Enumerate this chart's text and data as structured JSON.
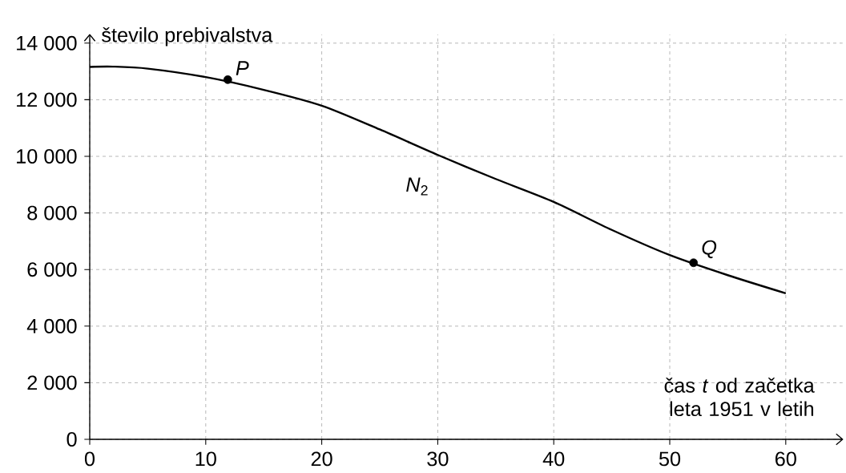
{
  "chart_data": {
    "type": "line",
    "ylabel": "število prebivalstva",
    "xlabel": "čas *t* od začetka leta 1951 v letih",
    "xlim": [
      0,
      64.9
    ],
    "ylim": [
      0,
      14300
    ],
    "xticks": [
      0,
      10,
      20,
      30,
      40,
      50,
      60
    ],
    "yticks": [
      {
        "value": 0,
        "label": "0"
      },
      {
        "value": 2000,
        "label": "2 000"
      },
      {
        "value": 4000,
        "label": "4 000"
      },
      {
        "value": 6000,
        "label": "6 000"
      },
      {
        "value": 8000,
        "label": "8 000"
      },
      {
        "value": 10000,
        "label": "10 000"
      },
      {
        "value": 12000,
        "label": "12 000"
      },
      {
        "value": 14000,
        "label": "14 000"
      }
    ],
    "grid": true,
    "series": [
      {
        "color": "#000000",
        "x": [
          0,
          2,
          5,
          10,
          15,
          20,
          25,
          30,
          35,
          40,
          45,
          50,
          55,
          60
        ],
        "values": [
          13160,
          13170,
          13100,
          12800,
          12350,
          11790,
          10950,
          10050,
          9200,
          8390,
          7400,
          6510,
          5800,
          5160
        ]
      },
      {
        "type": "scatter",
        "marker": "circle",
        "color": "#000000",
        "x": [
          11.9,
          52.05
        ],
        "values": [
          12710,
          6240
        ]
      }
    ],
    "annotations": [
      {
        "text": "*P*",
        "x": 11.9,
        "y": 12710
      },
      {
        "text": "*Q*",
        "x": 52.05,
        "y": 6240
      },
      "*N*$_{2}$"
    ]
  }
}
